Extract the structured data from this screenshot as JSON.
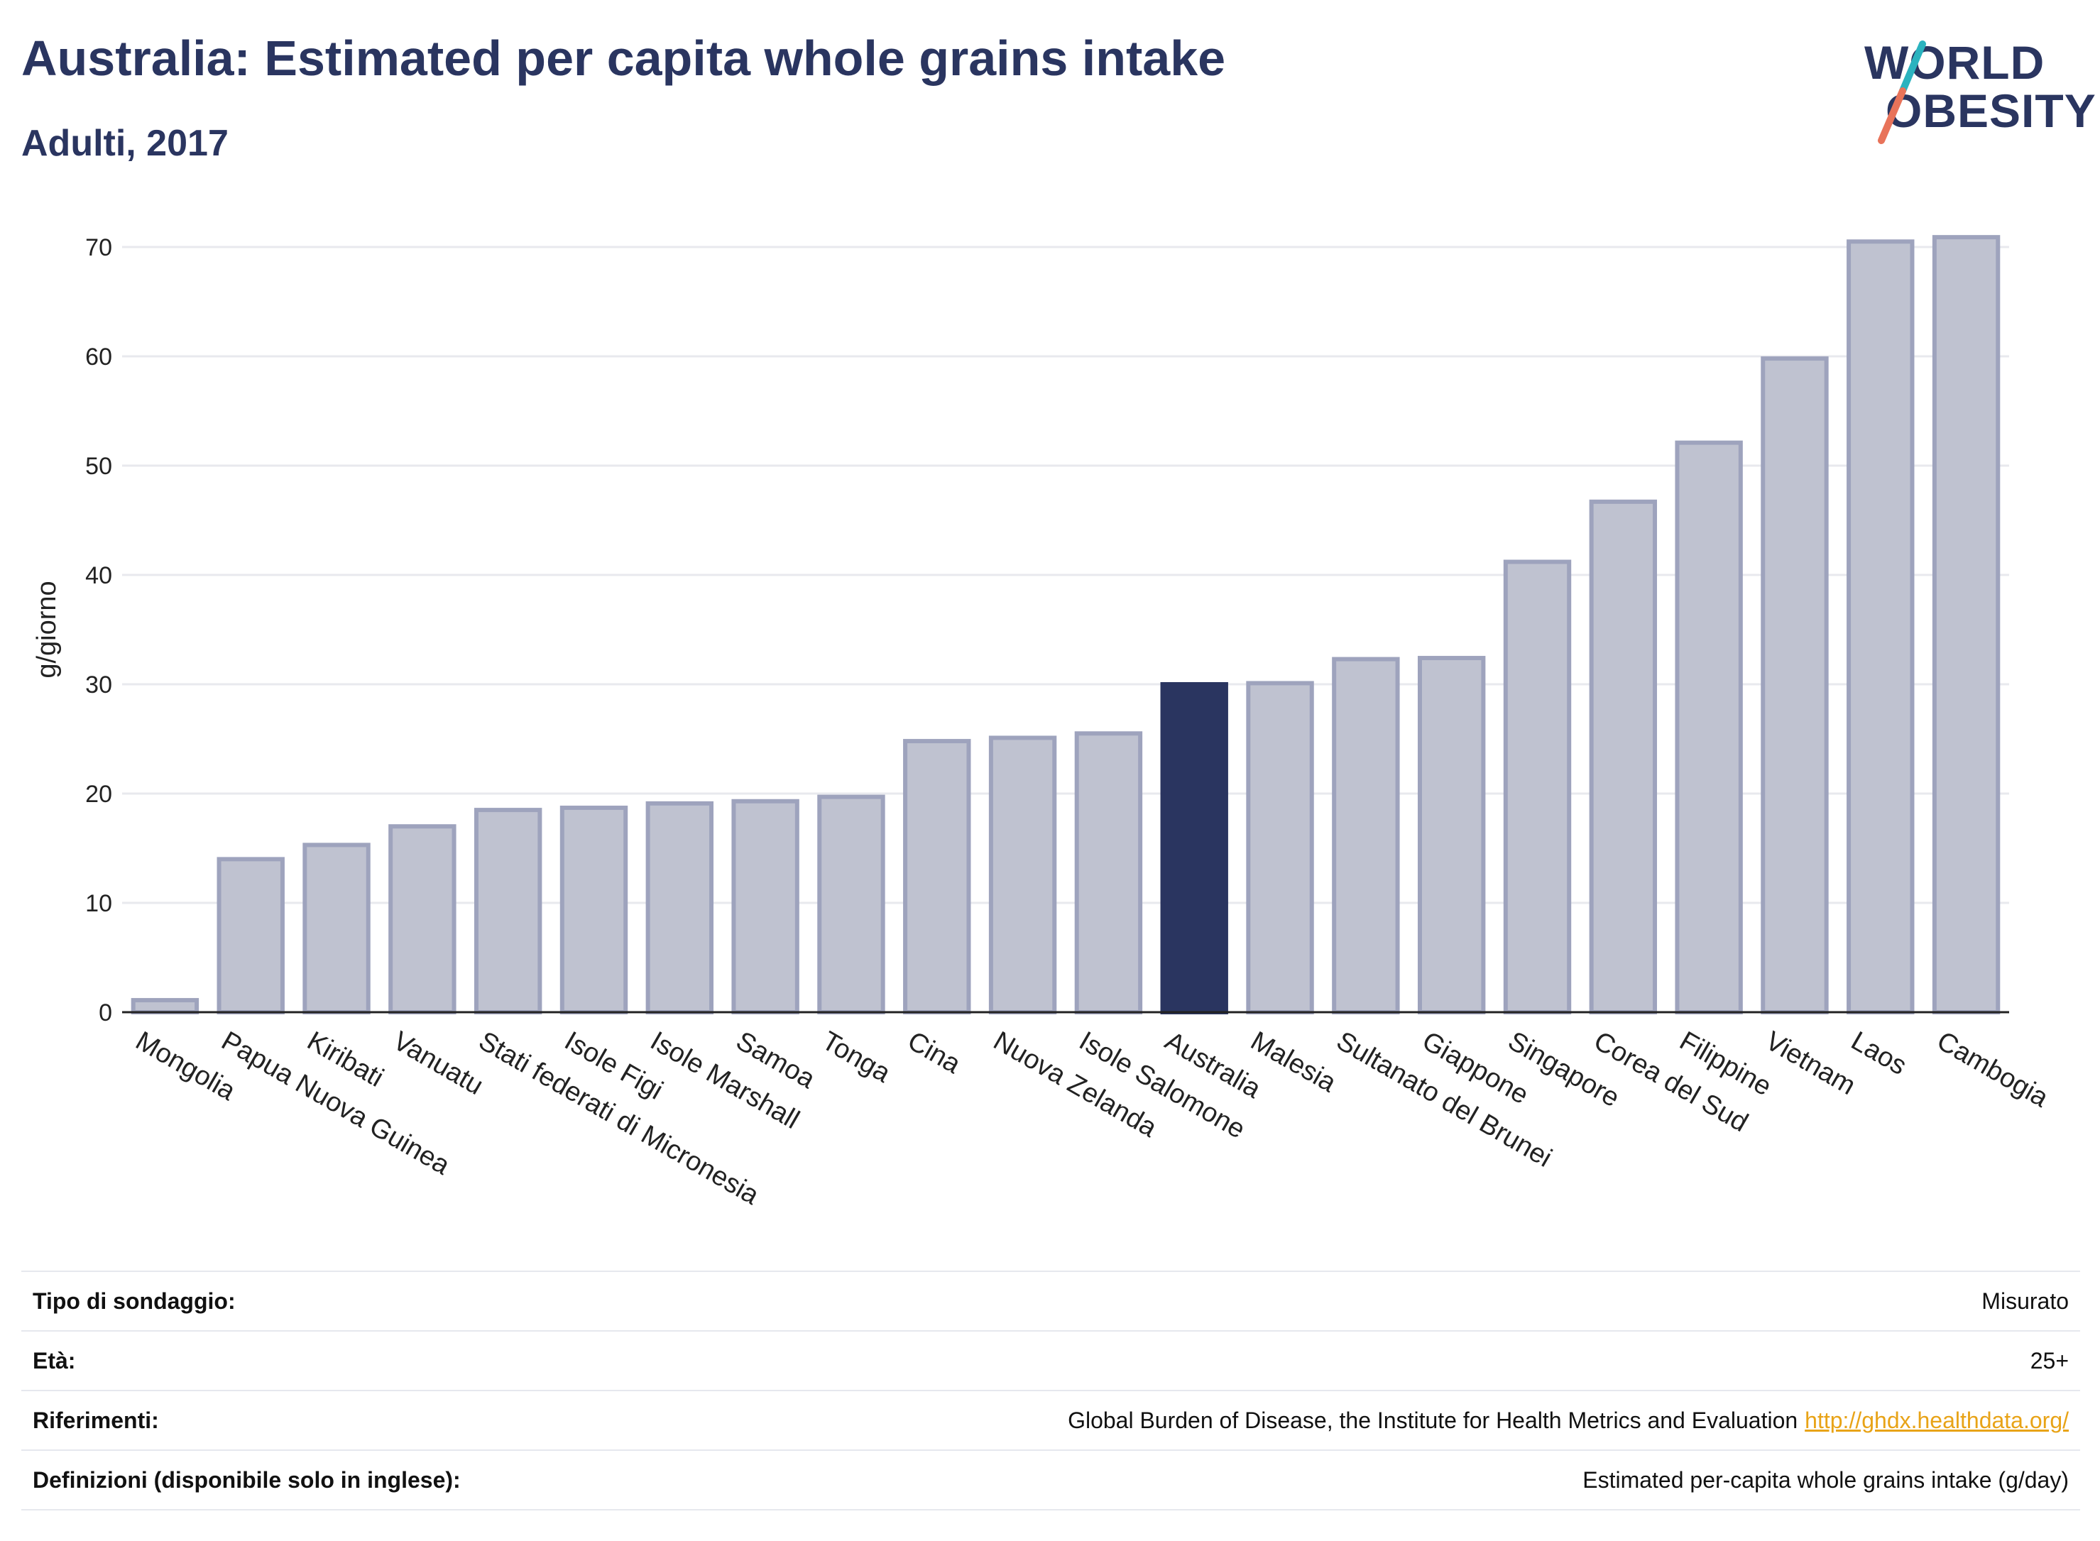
{
  "header": {
    "title": "Australia: Estimated per capita whole grains intake",
    "subtitle": "Adulti, 2017"
  },
  "logo": {
    "line1": "WORLD",
    "line2": "OBESITY",
    "accent_colors": [
      "#2bb3bf",
      "#e8735a"
    ]
  },
  "chart_data": {
    "type": "bar",
    "ylabel": "g/giorno",
    "ylim": [
      0,
      72
    ],
    "yticks": [
      0,
      10,
      20,
      30,
      40,
      50,
      60,
      70
    ],
    "grid": true,
    "highlight": "Australia",
    "colors": {
      "bar": "#bfc2d0",
      "bar_edge": "#9ea3bd",
      "highlight": "#2a3560"
    },
    "categories": [
      "Mongolia",
      "Papua Nuova Guinea",
      "Kiribati",
      "Vanuatu",
      "Stati federati di Micronesia",
      "Isole Figi",
      "Isole Marshall",
      "Samoa",
      "Tonga",
      "Cina",
      "Nuova Zelanda",
      "Isole Salomone",
      "Australia",
      "Malesia",
      "Sultanato del Brunei",
      "Giappone",
      "Singapore",
      "Corea del Sud",
      "Filippine",
      "Vietnam",
      "Laos",
      "Cambogia"
    ],
    "values": [
      1.1,
      14.0,
      15.3,
      17.0,
      18.5,
      18.7,
      19.1,
      19.3,
      19.7,
      24.8,
      25.1,
      25.5,
      30.0,
      30.1,
      32.3,
      32.4,
      41.2,
      46.7,
      52.1,
      59.8,
      70.5,
      70.9
    ]
  },
  "info": {
    "rows": [
      {
        "label": "Tipo di sondaggio:",
        "value": "Misurato"
      },
      {
        "label": "Età:",
        "value": "25+"
      },
      {
        "label": "Riferimenti:",
        "value": "Global Burden of Disease, the Institute for Health Metrics and Evaluation",
        "link": "http://ghdx.healthdata.org/"
      },
      {
        "label": "Definizioni (disponibile solo in inglese):",
        "value": "Estimated per-capita whole grains intake (g/day)"
      }
    ]
  }
}
